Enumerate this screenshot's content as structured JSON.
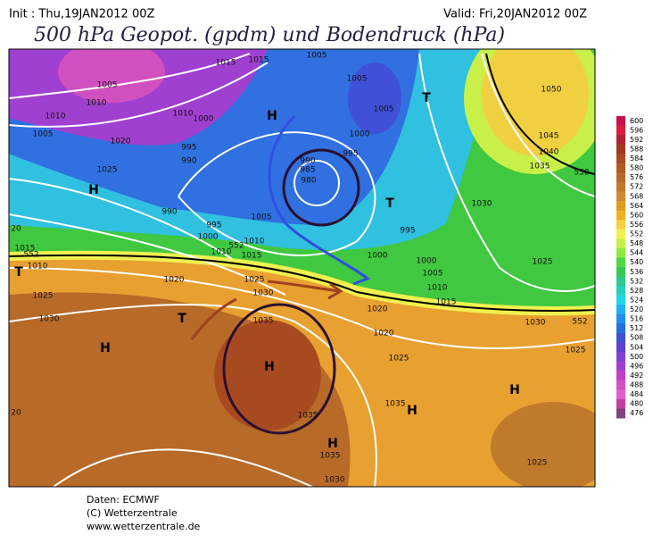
{
  "header": {
    "init": "Init : Thu,19JAN2012 00Z",
    "valid": "Valid: Fri,20JAN2012 00Z",
    "title": "500 hPa Geopot. (gpdm) und Bodendruck (hPa)"
  },
  "colorbar": {
    "levels": [
      600,
      596,
      592,
      588,
      584,
      580,
      576,
      572,
      568,
      564,
      560,
      556,
      552,
      548,
      544,
      540,
      536,
      532,
      528,
      524,
      520,
      516,
      512,
      508,
      504,
      500,
      496,
      492,
      488,
      484,
      480,
      476
    ],
    "colors": [
      "#c8104a",
      "#d81e3c",
      "#b02030",
      "#a03820",
      "#a84a20",
      "#b05a20",
      "#b86a28",
      "#c07a2c",
      "#d08a30",
      "#e09a20",
      "#f0b020",
      "#f8d040",
      "#f0f050",
      "#c8f048",
      "#90e840",
      "#50d840",
      "#38c850",
      "#30c890",
      "#28d0c0",
      "#20d8e8",
      "#20b0f0",
      "#2090f0",
      "#2070e0",
      "#4050d8",
      "#6040d0",
      "#8040d0",
      "#a040d0",
      "#c040c8",
      "#d050c0",
      "#e060d0",
      "#c040a0",
      "#804080"
    ]
  },
  "map": {
    "labels": [
      "1015",
      "1015",
      "1005",
      "1005",
      "1005",
      "1010",
      "1010",
      "1010",
      "1005",
      "1020",
      "1000",
      "995",
      "990",
      "1025",
      "990",
      "995",
      "1000",
      "1005",
      "1010",
      "1015",
      "1010",
      "1015",
      "1010",
      "1020",
      "1025",
      "1030",
      "1025",
      "1030",
      "1035",
      "1000",
      "995",
      "985",
      "980",
      "990",
      "1005",
      "1030",
      "995",
      "1000",
      "1000",
      "1005",
      "1010",
      "1015",
      "1020",
      "1025",
      "1030",
      "1025",
      "1025",
      "1035",
      "1035",
      "1035",
      "1030",
      "1025",
      "1050",
      "1045",
      "1040",
      "1035",
      "1020",
      "20",
      "20",
      "552",
      "552",
      "552",
      "558",
      "H",
      "H",
      "H",
      "H",
      "H",
      "H",
      "H",
      "T",
      "T",
      "T",
      "T"
    ]
  },
  "footer": [
    "Daten: ECMWF",
    "(C) Wetterzentrale",
    "www.wetterzentrale.de"
  ]
}
